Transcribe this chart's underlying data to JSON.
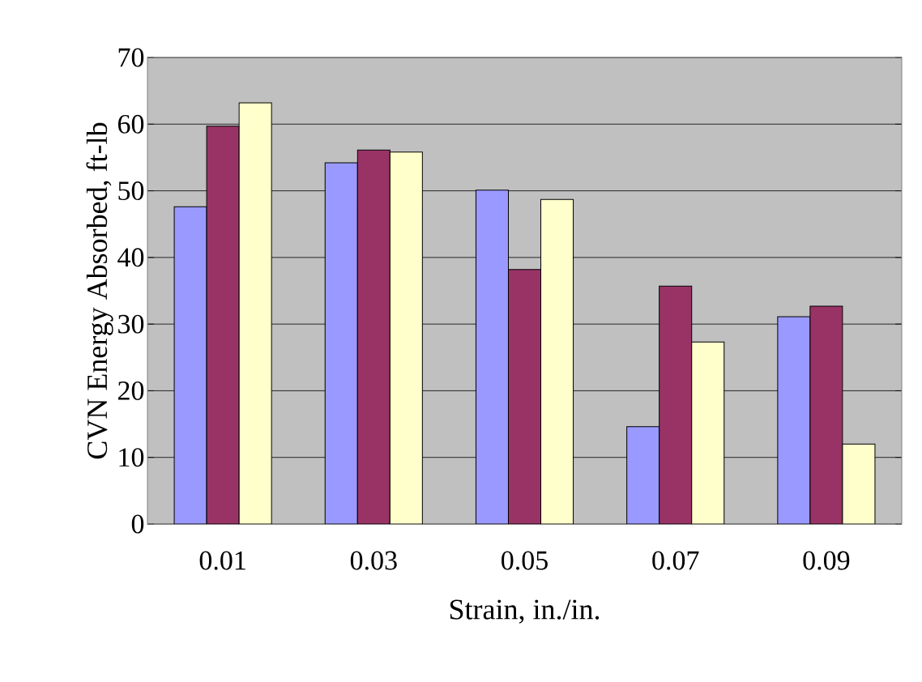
{
  "chart_data": {
    "type": "bar",
    "xlabel": "Strain, in./in.",
    "ylabel": "CVN Energy Absorbed, ft-lb",
    "categories": [
      "0.01",
      "0.03",
      "0.05",
      "0.07",
      "0.09"
    ],
    "series": [
      {
        "color": "#9999ff",
        "values": [
          47.6,
          54.2,
          50.1,
          14.6,
          31.1
        ]
      },
      {
        "color": "#993366",
        "values": [
          59.7,
          56.1,
          38.2,
          35.7,
          32.7
        ]
      },
      {
        "color": "#ffffcc",
        "values": [
          63.2,
          55.8,
          48.7,
          27.3,
          12.0
        ]
      }
    ],
    "ylim": [
      0,
      70
    ],
    "yticks": [
      0,
      10,
      20,
      30,
      40,
      50,
      60,
      70
    ],
    "grid": "y"
  }
}
